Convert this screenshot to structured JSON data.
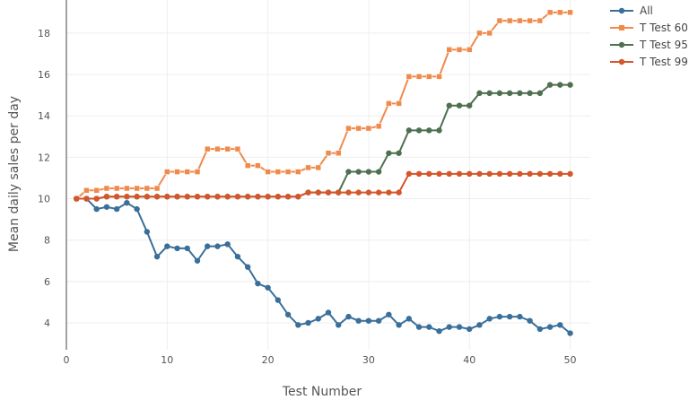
{
  "chart_data": {
    "type": "line",
    "xlabel": "Test Number",
    "ylabel": "Mean daily sales per day",
    "xlim": [
      0,
      52
    ],
    "ylim": [
      2.7,
      19.6
    ],
    "xticks": [
      0,
      10,
      20,
      30,
      40,
      50
    ],
    "yticks": [
      4,
      6,
      8,
      10,
      12,
      14,
      16,
      18
    ],
    "grid": true,
    "legend_position": "top-right",
    "x": [
      1,
      2,
      3,
      4,
      5,
      6,
      7,
      8,
      9,
      10,
      11,
      12,
      13,
      14,
      15,
      16,
      17,
      18,
      19,
      20,
      21,
      22,
      23,
      24,
      25,
      26,
      27,
      28,
      29,
      30,
      31,
      32,
      33,
      34,
      35,
      36,
      37,
      38,
      39,
      40,
      41,
      42,
      43,
      44,
      45,
      46,
      47,
      48,
      49,
      50
    ],
    "series": [
      {
        "name": "All",
        "color": "#3a6f9a",
        "marker": "circle",
        "values": [
          10.0,
          10.0,
          9.5,
          9.6,
          9.5,
          9.8,
          9.5,
          8.4,
          7.2,
          7.7,
          7.6,
          7.6,
          7.0,
          7.7,
          7.7,
          7.8,
          7.2,
          6.7,
          5.9,
          5.7,
          5.1,
          4.4,
          3.9,
          4.0,
          4.2,
          4.5,
          3.9,
          4.3,
          4.1,
          4.1,
          4.1,
          4.4,
          3.9,
          4.2,
          3.8,
          3.8,
          3.6,
          3.8,
          3.8,
          3.7,
          3.9,
          4.2,
          4.3,
          4.3,
          4.3,
          4.1,
          3.7,
          3.8,
          3.9,
          3.5
        ]
      },
      {
        "name": "T Test 60",
        "color": "#f08a4b",
        "marker": "square",
        "values": [
          10.0,
          10.4,
          10.4,
          10.5,
          10.5,
          10.5,
          10.5,
          10.5,
          10.5,
          11.3,
          11.3,
          11.3,
          11.3,
          12.4,
          12.4,
          12.4,
          12.4,
          11.6,
          11.6,
          11.3,
          11.3,
          11.3,
          11.3,
          11.5,
          11.5,
          12.2,
          12.2,
          13.4,
          13.4,
          13.4,
          13.5,
          14.6,
          14.6,
          15.9,
          15.9,
          15.9,
          15.9,
          17.2,
          17.2,
          17.2,
          18.0,
          18.0,
          18.6,
          18.6,
          18.6,
          18.6,
          18.6,
          19.0,
          19.0,
          19.0
        ]
      },
      {
        "name": "T Test 95",
        "color": "#4e7050",
        "marker": "circle",
        "values": [
          10.0,
          10.0,
          10.0,
          10.1,
          10.1,
          10.1,
          10.1,
          10.1,
          10.1,
          10.1,
          10.1,
          10.1,
          10.1,
          10.1,
          10.1,
          10.1,
          10.1,
          10.1,
          10.1,
          10.1,
          10.1,
          10.1,
          10.1,
          10.3,
          10.3,
          10.3,
          10.3,
          11.3,
          11.3,
          11.3,
          11.3,
          12.2,
          12.2,
          13.3,
          13.3,
          13.3,
          13.3,
          14.5,
          14.5,
          14.5,
          15.1,
          15.1,
          15.1,
          15.1,
          15.1,
          15.1,
          15.1,
          15.5,
          15.5,
          15.5
        ]
      },
      {
        "name": "T Test 99",
        "color": "#d4562a",
        "marker": "circle",
        "values": [
          10.0,
          10.0,
          10.0,
          10.1,
          10.1,
          10.1,
          10.1,
          10.1,
          10.1,
          10.1,
          10.1,
          10.1,
          10.1,
          10.1,
          10.1,
          10.1,
          10.1,
          10.1,
          10.1,
          10.1,
          10.1,
          10.1,
          10.1,
          10.3,
          10.3,
          10.3,
          10.3,
          10.3,
          10.3,
          10.3,
          10.3,
          10.3,
          10.3,
          11.2,
          11.2,
          11.2,
          11.2,
          11.2,
          11.2,
          11.2,
          11.2,
          11.2,
          11.2,
          11.2,
          11.2,
          11.2,
          11.2,
          11.2,
          11.2,
          11.2
        ]
      }
    ]
  }
}
